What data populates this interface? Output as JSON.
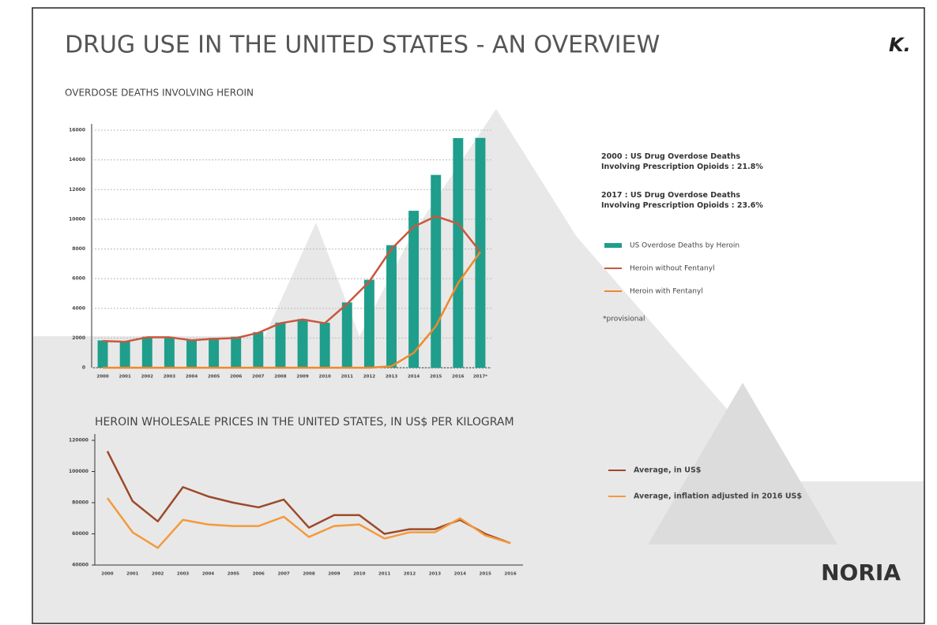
{
  "title": "DRUG USE IN THE UNITED STATES - AN OVERVIEW",
  "logo": "K.",
  "brand": "NORIA",
  "chart_data": [
    {
      "type": "bar",
      "title": "OVERDOSE DEATHS INVOLVING HEROIN",
      "categories": [
        "2000",
        "2001",
        "2002",
        "2003",
        "2004",
        "2005",
        "2006",
        "2007",
        "2008",
        "2009",
        "2010",
        "2011",
        "2012",
        "2013",
        "2014",
        "2015",
        "2016",
        "2017*"
      ],
      "series": [
        {
          "name": "US Overdose Deaths by Heroin",
          "type": "bar",
          "color": "#1f9e8c",
          "values": [
            1842,
            1779,
            2089,
            2080,
            1878,
            2009,
            2088,
            2399,
            3041,
            3278,
            3036,
            4397,
            5925,
            8257,
            10574,
            12989,
            15469,
            15482
          ]
        },
        {
          "name": "Heroin without Fentanyl",
          "type": "line",
          "color": "#c9573f",
          "values": [
            1800,
            1750,
            2050,
            2050,
            1850,
            1950,
            2000,
            2350,
            3000,
            3250,
            3000,
            4300,
            5800,
            8000,
            9500,
            10200,
            9700,
            7800
          ]
        },
        {
          "name": "Heroin with Fentanyl",
          "type": "line",
          "color": "#f0892a",
          "values": [
            0,
            0,
            0,
            0,
            0,
            0,
            0,
            0,
            0,
            0,
            0,
            0,
            0,
            100,
            1000,
            2800,
            5700,
            7800
          ]
        }
      ],
      "ylim": [
        0,
        16000
      ],
      "yticks": [
        0,
        2000,
        4000,
        6000,
        8000,
        10000,
        12000,
        14000,
        16000
      ],
      "grid": true,
      "annotations": [
        "2000 : US Drug Overdose Deaths\nInvolving Prescription Opioids : 21.8%",
        "2017 : US Drug Overdose Deaths\nInvolving Prescription Opioids : 23.6%"
      ],
      "note": "*provisional"
    },
    {
      "type": "line",
      "title": "HEROIN WHOLESALE PRICES IN THE UNITED STATES, IN US$ PER KILOGRAM",
      "categories": [
        "2000",
        "2001",
        "2002",
        "2003",
        "2004",
        "2005",
        "2006",
        "2007",
        "2008",
        "2009",
        "2010",
        "2011",
        "2012",
        "2013",
        "2014",
        "2015",
        "2016"
      ],
      "series": [
        {
          "name": "Average, in US$",
          "type": "line",
          "color": "#9c4a2a",
          "values": [
            113000,
            81000,
            68000,
            90000,
            84000,
            80000,
            77000,
            82000,
            64000,
            72000,
            72000,
            60000,
            63000,
            63000,
            69000,
            60000,
            54000
          ]
        },
        {
          "name": "Average, inflation adjusted in 2016 US$",
          "type": "line",
          "color": "#f39a3c",
          "values": [
            83000,
            61000,
            51000,
            69000,
            66000,
            65000,
            65000,
            71000,
            58000,
            65000,
            66000,
            57000,
            61000,
            61000,
            70000,
            59000,
            54000
          ]
        }
      ],
      "ylim": [
        40000,
        120000
      ],
      "yticks": [
        40000,
        60000,
        80000,
        100000,
        120000
      ],
      "grid": false
    }
  ]
}
